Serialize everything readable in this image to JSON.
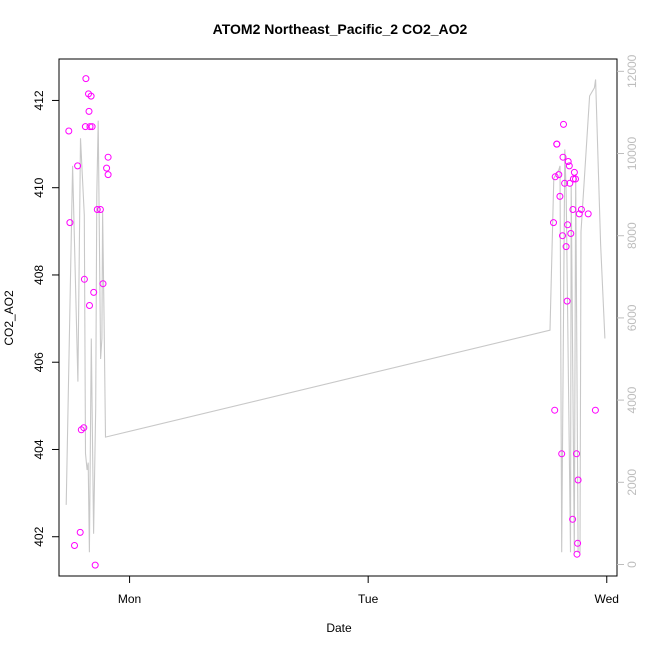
{
  "chart_data": {
    "type": "scatter",
    "title": "ATOM2 Northeast_Pacific_2 CO2_AO2",
    "xlabel": "Date",
    "ylabel": "CO2_AO2",
    "x_unit": "days since Sunday 00:00",
    "xlim": [
      0.7042,
      3.0429
    ],
    "xticks": [
      {
        "value": 1,
        "label": "Mon"
      },
      {
        "value": 2,
        "label": "Tue"
      },
      {
        "value": 3,
        "label": "Wed"
      }
    ],
    "ylim": [
      401.1,
      412.95
    ],
    "yticks": [
      402,
      404,
      406,
      408,
      410,
      412
    ],
    "y2lim": [
      -280,
      12300
    ],
    "y2ticks": [
      0,
      2000,
      4000,
      6000,
      8000,
      10000,
      12000
    ],
    "colors": {
      "points": "#ff00ff",
      "line": "#c8c8c8",
      "right_axis": "#bdbdbd"
    },
    "series": [
      {
        "role": "points",
        "axis": "left",
        "x": [
          0.7454,
          0.7498,
          0.7693,
          0.7823,
          0.7932,
          0.7975,
          0.8083,
          0.8105,
          0.8148,
          0.817,
          0.8278,
          0.83,
          0.8322,
          0.8343,
          0.8387,
          0.843,
          0.8495,
          0.856,
          0.8648,
          0.8778,
          0.8886,
          0.9038,
          0.9098,
          0.9098,
          2.7766,
          2.7818,
          2.784,
          2.7905,
          2.7905,
          2.7991,
          2.8036,
          2.8111,
          2.8144,
          2.8164,
          2.8187,
          2.8232,
          2.8295,
          2.8338,
          2.836,
          2.8384,
          2.8428,
          2.8449,
          2.8493,
          2.8568,
          2.8579,
          2.8602,
          2.8645,
          2.8688,
          2.8732,
          2.8753,
          2.8776,
          2.8797,
          2.8851,
          2.8938,
          2.922,
          2.9524
        ],
        "y": [
          411.3,
          409.2,
          401.8,
          410.5,
          402.1,
          404.45,
          404.5,
          407.9,
          411.4,
          412.5,
          412.15,
          411.75,
          407.3,
          411.4,
          412.1,
          411.4,
          407.6,
          401.35,
          409.5,
          409.5,
          407.8,
          410.45,
          410.3,
          410.7,
          409.2,
          404.9,
          410.25,
          411.0,
          411.0,
          410.3,
          409.8,
          403.9,
          408.9,
          410.7,
          411.45,
          410.1,
          408.65,
          407.4,
          409.15,
          410.6,
          410.5,
          410.1,
          408.95,
          402.4,
          409.5,
          410.2,
          410.35,
          410.2,
          403.9,
          401.6,
          401.85,
          403.3,
          409.4,
          409.5,
          409.4,
          404.9
        ]
      },
      {
        "role": "line",
        "axis": "right",
        "x": [
          0.7344,
          0.7614,
          0.7834,
          0.7942,
          0.8104,
          0.8152,
          0.8218,
          0.8265,
          0.8315,
          0.8396,
          0.8432,
          0.8494,
          0.858,
          0.8628,
          0.8684,
          0.8787,
          0.8842,
          0.8871,
          0.893,
          0.899,
          2.762,
          2.778,
          2.799,
          2.804,
          2.811,
          2.824,
          2.83,
          2.848,
          2.851,
          2.864,
          2.87,
          2.88,
          2.888,
          2.892,
          2.928,
          2.948,
          2.953,
          2.974,
          2.992
        ],
        "y": [
          1450,
          9700,
          4450,
          10370,
          8500,
          2700,
          2300,
          2480,
          300,
          5500,
          3600,
          750,
          3800,
          9000,
          10800,
          5000,
          5500,
          8600,
          6100,
          3100,
          5700,
          9400,
          9600,
          9700,
          300,
          10100,
          9000,
          300,
          9200,
          300,
          9500,
          300,
          300,
          8100,
          11400,
          11600,
          11800,
          7800,
          5500
        ]
      }
    ]
  }
}
